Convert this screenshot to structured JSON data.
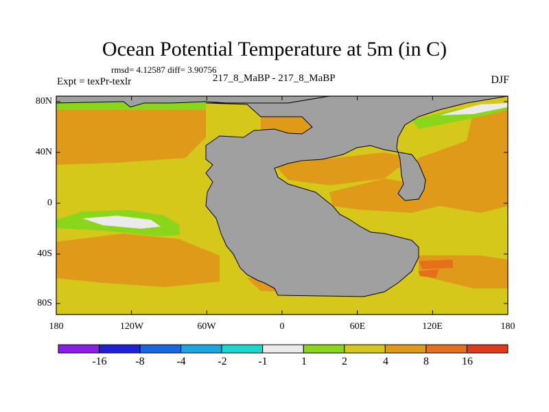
{
  "title": "Ocean Potential Temperature at 5m (in C)",
  "stats": "rmsd= 4.12587 diff= 3.90756",
  "experiment": "Expt = texPr-texlr",
  "comparison": "217_8_MaBP - 217_8_MaBP",
  "season": "DJF",
  "y_axis": {
    "labels": [
      "80N",
      "40N",
      "0",
      "40S",
      "80S"
    ]
  },
  "x_axis": {
    "labels": [
      "180",
      "120W",
      "60W",
      "0",
      "60E",
      "120E",
      "180"
    ]
  },
  "colorbar": {
    "colors": [
      "#8a1ee6",
      "#2020d8",
      "#1a66e0",
      "#1aa6e0",
      "#1ad8d0",
      "#ebebeb",
      "#8ad61a",
      "#d6c81a",
      "#e09a1a",
      "#e6701a",
      "#e03a1a"
    ],
    "labels": [
      "-16",
      "-8",
      "-4",
      "-2",
      "-1",
      "1",
      "2",
      "4",
      "8",
      "16"
    ]
  },
  "map_colors": {
    "land": "#a0a0a0",
    "coast": "#000000"
  }
}
